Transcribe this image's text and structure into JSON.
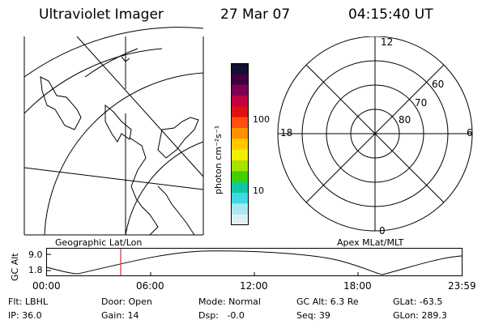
{
  "header": {
    "instrument": "Ultraviolet Imager",
    "date": "27 Mar 07",
    "time": "04:15:40 UT"
  },
  "geo_panel": {
    "label": "Geographic Lat/Lon"
  },
  "colorbar": {
    "label": "photon cm⁻²s⁻¹",
    "tick_labels": [
      "100",
      "10"
    ],
    "colors": [
      "#101030",
      "#400040",
      "#800050",
      "#c00040",
      "#e01010",
      "#ff5010",
      "#ff9000",
      "#ffc800",
      "#f0f000",
      "#a8e000",
      "#40d000",
      "#10c8a0",
      "#40d8e8",
      "#a8e8f0",
      "#e0f0f0"
    ]
  },
  "polar_panel": {
    "label": "Apex MLat/MLT",
    "mlt_labels": [
      "12",
      "18",
      "6",
      "0"
    ],
    "mlat_labels": [
      "60",
      "70",
      "80"
    ]
  },
  "altitude_plot": {
    "ylabel": "GC Alt",
    "ytick_labels": [
      "9.0",
      "1.8"
    ],
    "xtick_labels": [
      "00:00",
      "06:00",
      "12:00",
      "18:00",
      "23:59"
    ],
    "marker_color": "#e03030"
  },
  "status": {
    "row1": {
      "filter": "Flt: LBHL",
      "door": "Door: Open",
      "mode": "Mode: Normal",
      "gc_alt": "GC Alt: 6.3 Re",
      "glat": "GLat: -63.5"
    },
    "row2": {
      "ip": "IP: 36.0",
      "gain": "Gain: 14",
      "dsp": "Dsp:   -0.0",
      "seq": "Seq: 39",
      "glon": "GLon: 289.3"
    }
  }
}
